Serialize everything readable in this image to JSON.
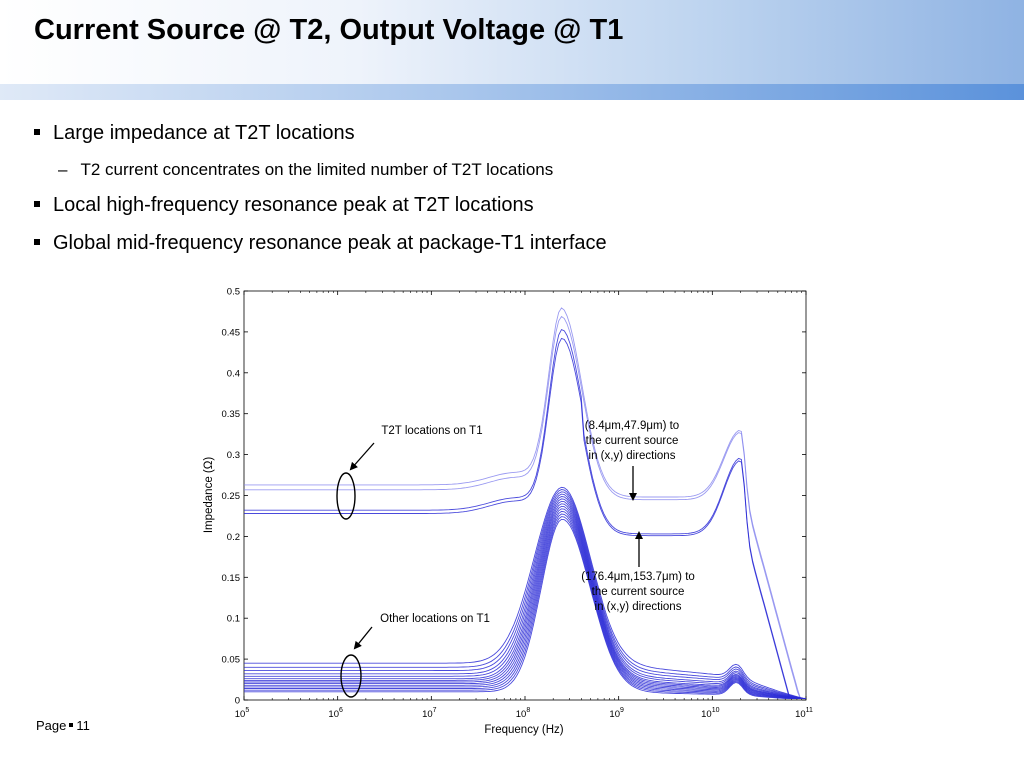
{
  "slide": {
    "title": "Current Source @ T2, Output Voltage @ T1",
    "bullets": [
      {
        "level": 1,
        "text": "Large impedance at T2T locations"
      },
      {
        "level": 2,
        "text": "T2 current concentrates on the limited number of T2T locations"
      },
      {
        "level": 1,
        "text": "Local high-frequency resonance peak at T2T locations"
      },
      {
        "level": 1,
        "text": "Global mid-frequency resonance peak at package-T1 interface"
      }
    ],
    "footer": {
      "page_label": "Page",
      "page_number": "11"
    }
  },
  "colors": {
    "series": "#2a2ad6",
    "series_light": "#8a8aef",
    "header_accent": "#5b92db"
  },
  "chart_data": {
    "type": "line",
    "xscale": "log",
    "xlim": [
      100000,
      100000000000
    ],
    "ylim": [
      0,
      0.5
    ],
    "xlabel": "Frequency (Hz)",
    "ylabel": "Impedance (Ω)",
    "xticks": [
      {
        "base": "10",
        "exp": "5"
      },
      {
        "base": "10",
        "exp": "6"
      },
      {
        "base": "10",
        "exp": "7"
      },
      {
        "base": "10",
        "exp": "8"
      },
      {
        "base": "10",
        "exp": "9"
      },
      {
        "base": "10",
        "exp": "10"
      },
      {
        "base": "10",
        "exp": "11"
      }
    ],
    "yticks": [
      "0",
      "0.05",
      "0.1",
      "0.15",
      "0.2",
      "0.25",
      "0.3",
      "0.35",
      "0.4",
      "0.45",
      "0.5"
    ],
    "annotations": [
      {
        "id": "t2t",
        "lines": [
          "T2T locations on T1"
        ]
      },
      {
        "id": "near",
        "lines": [
          "(8.4μm,47.9μm) to",
          "the current source",
          "in (x,y) directions"
        ]
      },
      {
        "id": "far",
        "lines": [
          "(176.4μm,153.7μm) to",
          "the current source",
          "in (x,y) directions"
        ]
      },
      {
        "id": "other",
        "lines": [
          "Other locations on T1"
        ]
      }
    ],
    "series_groups": [
      {
        "group": "T2T",
        "params": {
          "peak_f": 250000000,
          "peak_z": 0.47,
          "hf_peak_f": 20000000000,
          "hf_peak_z": 0.33
        },
        "baselines": [
          0.263,
          0.257,
          0.232,
          0.228
        ]
      },
      {
        "group": "Other",
        "params": {
          "peak_f": 250000000,
          "peak_z": 0.26,
          "hf_peak_f": 18000000000,
          "hf_peak_z": 0.015
        },
        "baselines": [
          0.045,
          0.04,
          0.036,
          0.032,
          0.029,
          0.026,
          0.024,
          0.022,
          0.02,
          0.018,
          0.016,
          0.014,
          0.012,
          0.01
        ]
      }
    ]
  }
}
